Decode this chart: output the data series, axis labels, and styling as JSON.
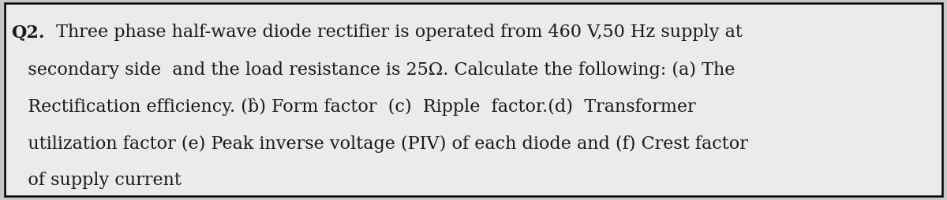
{
  "background_color": "#c8c8c8",
  "box_background": "#ebebeb",
  "border_color": "#000000",
  "bold_label": "Q2.",
  "line1_rest": " Three phase half-wave diode rectifier is operated from 460 V,50 Hz supply at",
  "line2": "   secondary side  and the load resistance is 25Ω. Calculate the following: (a) The",
  "line3": "   Rectification efficiency. (b̀) Form factor  (c)  Ripple  factor.(d)  Transformer",
  "line4": "   utilization factor (e) Peak inverse voltage (PIV) of each diode and (f) Crest factor",
  "line5": "   of supply current",
  "font_size": 16.0,
  "bold_font_size": 16.0,
  "text_color": "#1a1a1a",
  "figsize": [
    12.0,
    2.54
  ],
  "dpi": 100
}
